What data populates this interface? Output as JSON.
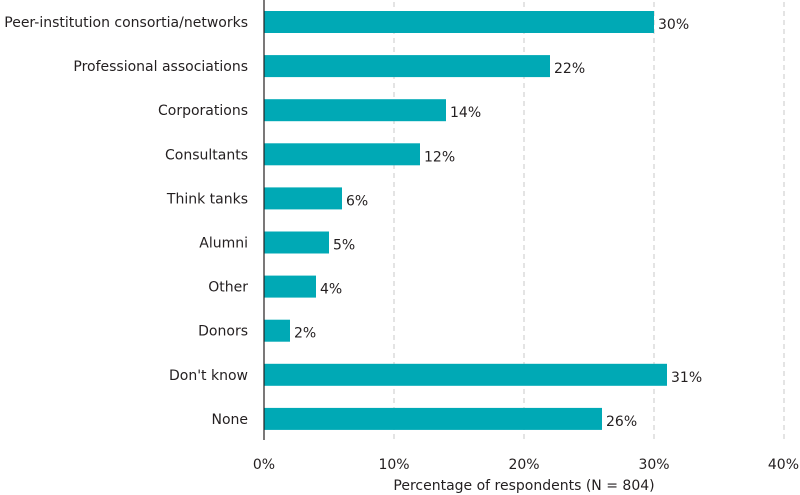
{
  "chart_data": {
    "type": "bar",
    "orientation": "horizontal",
    "categories": [
      "Peer-institution consortia/networks",
      "Professional associations",
      "Corporations",
      "Consultants",
      "Think tanks",
      "Alumni",
      "Other",
      "Donors",
      "Don't know",
      "None"
    ],
    "values": [
      30,
      22,
      14,
      12,
      6,
      5,
      4,
      2,
      31,
      26
    ],
    "value_labels": [
      "30%",
      "22%",
      "14%",
      "12%",
      "6%",
      "5%",
      "4%",
      "2%",
      "31%",
      "26%"
    ],
    "xlabel": "Percentage of respondents (N = 804)",
    "xlim": [
      0,
      40
    ],
    "xticks": [
      0,
      10,
      20,
      30,
      40
    ],
    "xtick_labels": [
      "0%",
      "10%",
      "20%",
      "30%",
      "40%"
    ],
    "grid": true,
    "bar_color": "#00a9b5"
  }
}
